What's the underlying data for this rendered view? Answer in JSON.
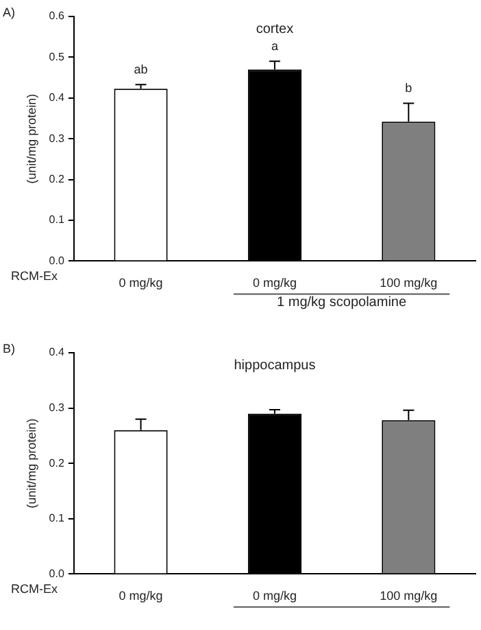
{
  "chart_data": [
    {
      "type": "bar",
      "title": "cortex",
      "ylabel": "(unit/mg protein)",
      "categories": [
        "0 mg/kg",
        "0 mg/kg",
        "100 mg/kg"
      ],
      "values": [
        0.423,
        0.47,
        0.342
      ],
      "colors": [
        "#ffffff",
        "#000000",
        "#7f7f7f"
      ],
      "errors": [
        0.01,
        0.02,
        0.045
      ],
      "value_labels": [
        "ab",
        "a",
        "b"
      ],
      "ylim": [
        0,
        0.6
      ],
      "yticks": [
        {
          "value": 0,
          "label": "0.0"
        },
        {
          "value": 0.1,
          "label": "0.1"
        },
        {
          "value": 0.2,
          "label": "0.2"
        },
        {
          "value": 0.3,
          "label": "0.3"
        },
        {
          "value": 0.4,
          "label": "0.4"
        },
        {
          "value": 0.5,
          "label": "0.5"
        },
        {
          "value": 0.6,
          "label": "0.6"
        }
      ],
      "grid": false,
      "legend": false,
      "annotations": [
        "A)",
        "RCM-Ex",
        "1 mg/kg scopolamine"
      ]
    },
    {
      "type": "bar",
      "title": "hippocampus",
      "ylabel": "(unit/mg protein)",
      "categories": [
        "0 mg/kg",
        "0 mg/kg",
        "100 mg/kg"
      ],
      "values": [
        0.26,
        0.29,
        0.278
      ],
      "colors": [
        "#ffffff",
        "#000000",
        "#7f7f7f"
      ],
      "errors": [
        0.02,
        0.007,
        0.018
      ],
      "ylim": [
        0,
        0.4
      ],
      "yticks": [
        {
          "value": 0,
          "label": "0.0"
        },
        {
          "value": 0.1,
          "label": "0.1"
        },
        {
          "value": 0.2,
          "label": "0.2"
        },
        {
          "value": 0.3,
          "label": "0.3"
        },
        {
          "value": 0.4,
          "label": "0.4"
        }
      ],
      "grid": false,
      "legend": false,
      "annotations": [
        "B)",
        "RCM-Ex"
      ]
    }
  ]
}
